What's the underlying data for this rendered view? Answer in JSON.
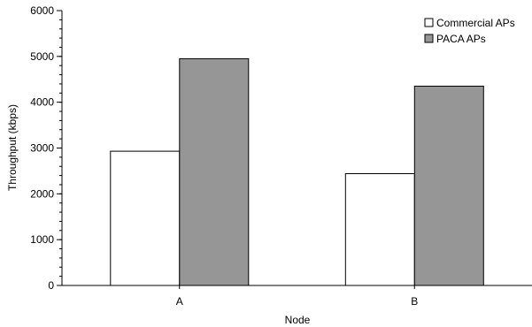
{
  "chart_data": {
    "type": "bar",
    "categories": [
      "A",
      "B"
    ],
    "series": [
      {
        "name": "Commercial APs",
        "values": [
          2930,
          2440
        ],
        "color": "#ffffff"
      },
      {
        "name": "PACA APs",
        "values": [
          4950,
          4350
        ],
        "color": "#969696"
      }
    ],
    "xlabel": "Node",
    "ylabel": "Throughput (kbps)",
    "ylim": [
      0,
      6000
    ],
    "yticks": [
      "0",
      "1000",
      "2000",
      "3000",
      "4000",
      "5000",
      "6000"
    ],
    "grid": false,
    "legend_position": "top-right"
  }
}
